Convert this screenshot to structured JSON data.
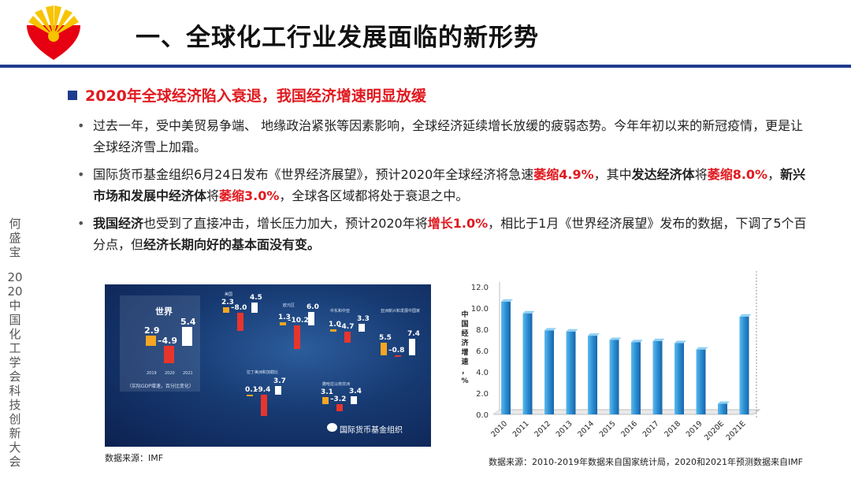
{
  "header": {
    "title": "一、全球化工行业发展面临的新形势"
  },
  "sidebar": {
    "author": "何盛宝",
    "event": "2020中国化工学会科技创新大会"
  },
  "section": {
    "headline": "2020年全球经济陷入衰退，我国经济增速明显放缓"
  },
  "bullets": {
    "b1": "过去一年，受中美贸易争端、 地缘政治紧张等因素影响，全球经济延续增长放缓的疲弱态势。今年年初以来的新冠疫情，更是让全球经济雪上加霜。",
    "b2_p1": "国际货币基金组织6月24日发布《世界经济展望》，预计2020年全球经济将急速",
    "b2_r1": "萎缩4.9%",
    "b2_p2": "，其中",
    "b2_b1": "发达经济体",
    "b2_p3": "将",
    "b2_r2": "萎缩8.0%",
    "b2_p4": "，",
    "b2_b2": "新兴市场和发展中经济体",
    "b2_p5": "将",
    "b2_r3": "萎缩3.0%",
    "b2_p6": "，全球各区域都将处于衰退之中。",
    "b3_b1": "我国经济",
    "b3_p1": "也受到了直接冲击，增长压力加大，预计2020年将",
    "b3_r1": "增长1.0%",
    "b3_p2": "，相比于1月《世界经济展望》发布的数据，下调了5个百分点，但",
    "b3_b2": "经济长期向好的基本面没有变。"
  },
  "imf": {
    "world_label": "世界",
    "world_values": [
      "2.9",
      "–4.9",
      "5.4"
    ],
    "world_years": [
      "2019",
      "2020",
      "2021"
    ],
    "world_note": "（实际GDP增速，百分比变化）",
    "panels": [
      {
        "name": "美国",
        "values": [
          "2.3",
          "–8.0",
          "4.5"
        ]
      },
      {
        "name": "欧元区",
        "values": [
          "1.3",
          "–10.2",
          "6.0"
        ]
      },
      {
        "name": "中东和中亚",
        "values": [
          "1.0",
          "–4.7",
          "3.3"
        ]
      },
      {
        "name": "亚洲新兴和发展中国家",
        "values": [
          "5.5",
          "–0.8",
          "7.4"
        ]
      },
      {
        "name": "拉丁美洲和加勒比",
        "values": [
          "0.1",
          "–9.4",
          "3.7"
        ]
      },
      {
        "name": "撒哈拉以南非洲",
        "values": [
          "3.1",
          "–3.2",
          "3.4"
        ]
      }
    ],
    "brand": "国际货币基金组织",
    "colors": [
      "#f5a623",
      "#e8352c",
      "#ffffff"
    ]
  },
  "source_left": "数据来源：IMF",
  "source_right": "数据来源：2010-2019年数据来自国家统计局，2020和2021年预测数据来自IMF",
  "chart_data": {
    "type": "bar",
    "ylabel": "中国经济增速，%",
    "ylim": [
      0,
      12
    ],
    "yticks": [
      0.0,
      2.0,
      4.0,
      6.0,
      8.0,
      10.0,
      12.0
    ],
    "categories": [
      "2010",
      "2011",
      "2012",
      "2013",
      "2014",
      "2015",
      "2016",
      "2017",
      "2018",
      "2019",
      "2020E",
      "2021E"
    ],
    "values": [
      10.6,
      9.5,
      7.9,
      7.8,
      7.4,
      7.0,
      6.8,
      6.9,
      6.7,
      6.1,
      1.0,
      9.2
    ],
    "bar_color": "#2a8fd4"
  }
}
